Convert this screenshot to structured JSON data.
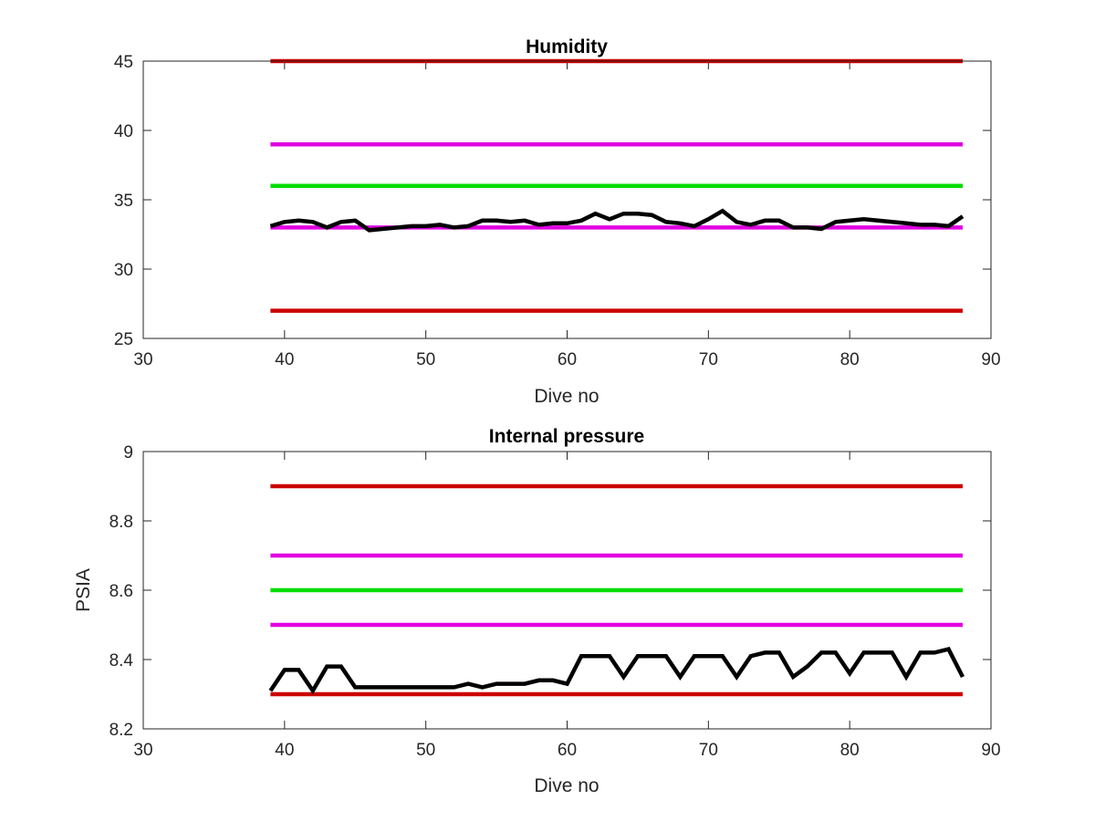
{
  "chart_data": [
    {
      "type": "line",
      "title": "Humidity",
      "xlabel": "Dive no",
      "ylabel": "",
      "xlim": [
        30,
        90
      ],
      "ylim": [
        25,
        45
      ],
      "xticks": [
        30,
        40,
        50,
        60,
        70,
        80,
        90
      ],
      "yticks": [
        25,
        30,
        35,
        40,
        45
      ],
      "xtick_labels": [
        "30",
        "40",
        "50",
        "60",
        "70",
        "80",
        "90"
      ],
      "ytick_labels": [
        "25",
        "30",
        "35",
        "40",
        "45"
      ],
      "grid": false,
      "series": [
        {
          "color": "#cc0000",
          "x": [
            39,
            88
          ],
          "values": [
            45,
            45
          ]
        },
        {
          "color": "#e000e0",
          "x": [
            39,
            88
          ],
          "values": [
            39,
            39
          ]
        },
        {
          "color": "#00dd00",
          "x": [
            39,
            88
          ],
          "values": [
            36,
            36
          ]
        },
        {
          "color": "#e000e0",
          "x": [
            39,
            88
          ],
          "values": [
            33,
            33
          ]
        },
        {
          "color": "#cc0000",
          "x": [
            39,
            88
          ],
          "values": [
            27,
            27
          ]
        },
        {
          "color": "#000000",
          "x": [
            39,
            40,
            41,
            42,
            43,
            44,
            45,
            46,
            47,
            48,
            49,
            50,
            51,
            52,
            53,
            54,
            55,
            56,
            57,
            58,
            59,
            60,
            61,
            62,
            63,
            64,
            65,
            66,
            67,
            68,
            69,
            70,
            71,
            72,
            73,
            74,
            75,
            76,
            77,
            78,
            79,
            80,
            81,
            82,
            83,
            84,
            85,
            86,
            87,
            88
          ],
          "values": [
            33.1,
            33.4,
            33.5,
            33.4,
            33.0,
            33.4,
            33.5,
            32.8,
            32.9,
            33.0,
            33.1,
            33.1,
            33.2,
            33.0,
            33.1,
            33.5,
            33.5,
            33.4,
            33.5,
            33.2,
            33.3,
            33.3,
            33.5,
            34.0,
            33.6,
            34.0,
            34.0,
            33.9,
            33.4,
            33.3,
            33.1,
            33.6,
            34.2,
            33.4,
            33.2,
            33.5,
            33.5,
            33.0,
            33.0,
            32.9,
            33.4,
            33.5,
            33.6,
            33.5,
            33.4,
            33.3,
            33.2,
            33.2,
            33.1,
            33.8
          ]
        }
      ]
    },
    {
      "type": "line",
      "title": "Internal pressure",
      "xlabel": "Dive no",
      "ylabel": "PSIA",
      "xlim": [
        30,
        90
      ],
      "ylim": [
        8.2,
        9
      ],
      "xticks": [
        30,
        40,
        50,
        60,
        70,
        80,
        90
      ],
      "yticks": [
        8.2,
        8.4,
        8.6,
        8.8,
        9
      ],
      "xtick_labels": [
        "30",
        "40",
        "50",
        "60",
        "70",
        "80",
        "90"
      ],
      "ytick_labels": [
        "8.2",
        "8.4",
        "8.6",
        "8.8",
        "9"
      ],
      "grid": false,
      "series": [
        {
          "color": "#cc0000",
          "x": [
            39,
            88
          ],
          "values": [
            8.9,
            8.9
          ]
        },
        {
          "color": "#e000e0",
          "x": [
            39,
            88
          ],
          "values": [
            8.7,
            8.7
          ]
        },
        {
          "color": "#00dd00",
          "x": [
            39,
            88
          ],
          "values": [
            8.6,
            8.6
          ]
        },
        {
          "color": "#e000e0",
          "x": [
            39,
            88
          ],
          "values": [
            8.5,
            8.5
          ]
        },
        {
          "color": "#cc0000",
          "x": [
            39,
            88
          ],
          "values": [
            8.3,
            8.3
          ]
        },
        {
          "color": "#000000",
          "x": [
            39,
            40,
            41,
            42,
            43,
            44,
            45,
            46,
            47,
            48,
            49,
            50,
            51,
            52,
            53,
            54,
            55,
            56,
            57,
            58,
            59,
            60,
            61,
            62,
            63,
            64,
            65,
            66,
            67,
            68,
            69,
            70,
            71,
            72,
            73,
            74,
            75,
            76,
            77,
            78,
            79,
            80,
            81,
            82,
            83,
            84,
            85,
            86,
            87,
            88
          ],
          "values": [
            8.31,
            8.37,
            8.37,
            8.31,
            8.38,
            8.38,
            8.32,
            8.32,
            8.32,
            8.32,
            8.32,
            8.32,
            8.32,
            8.32,
            8.33,
            8.32,
            8.33,
            8.33,
            8.33,
            8.34,
            8.34,
            8.33,
            8.41,
            8.41,
            8.41,
            8.35,
            8.41,
            8.41,
            8.41,
            8.35,
            8.41,
            8.41,
            8.41,
            8.35,
            8.41,
            8.42,
            8.42,
            8.35,
            8.38,
            8.42,
            8.42,
            8.36,
            8.42,
            8.42,
            8.42,
            8.35,
            8.42,
            8.42,
            8.43,
            8.35
          ]
        }
      ]
    }
  ]
}
